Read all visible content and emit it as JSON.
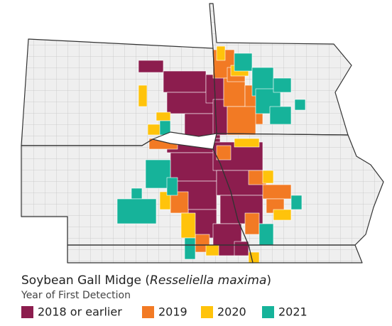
{
  "title": {
    "text": "Soybean Gall Midge (",
    "italic": "Resseliella maxima",
    "end": ")"
  },
  "subtitle": "Year of First Detection",
  "legend": [
    {
      "label": "2018 or earlier",
      "color": "#8c1d4e"
    },
    {
      "label": "2019",
      "color": "#f27a24"
    },
    {
      "label": "2020",
      "color": "#ffc30b"
    },
    {
      "label": "2021",
      "color": "#16b39a"
    }
  ]
}
